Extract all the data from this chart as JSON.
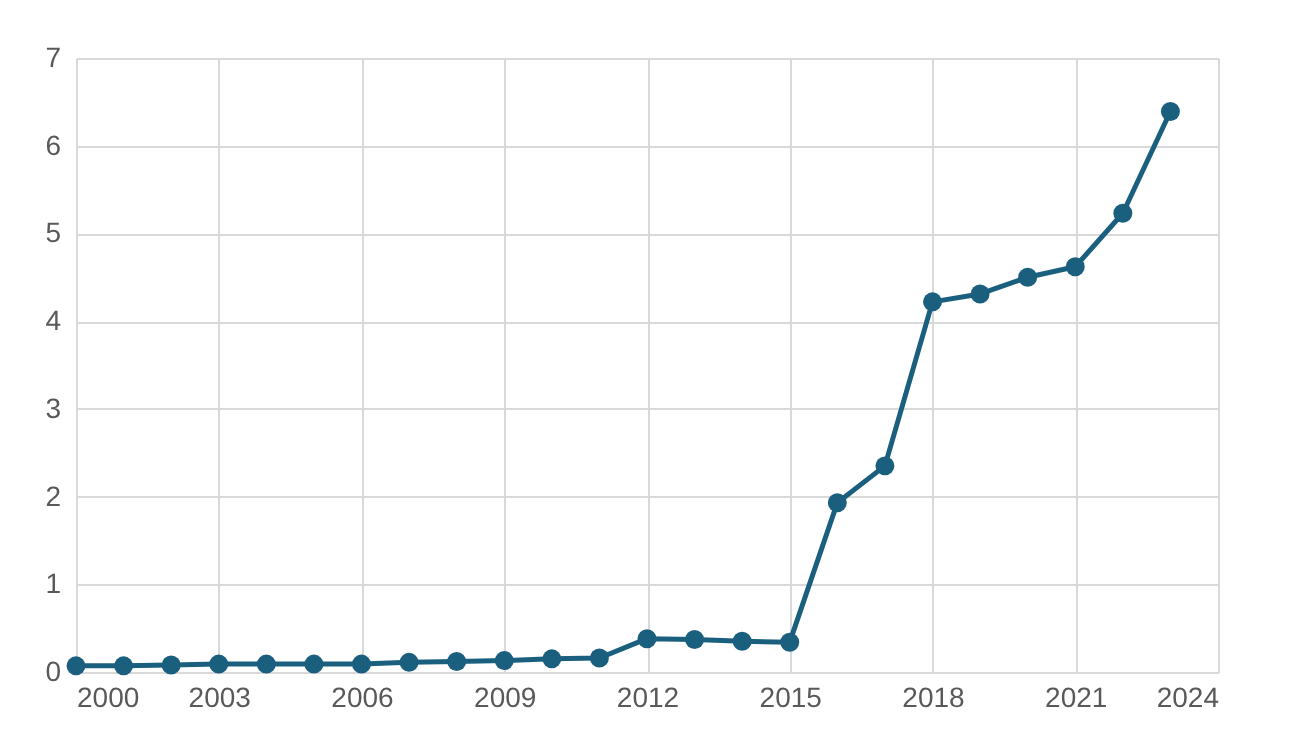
{
  "chart_data": {
    "type": "line",
    "x": [
      2000,
      2001,
      2002,
      2003,
      2004,
      2005,
      2006,
      2007,
      2008,
      2009,
      2010,
      2011,
      2012,
      2013,
      2014,
      2015,
      2016,
      2017,
      2018,
      2019,
      2020,
      2021,
      2022,
      2023
    ],
    "series": [
      {
        "color": "#1b5f7e",
        "values": [
          0.07,
          0.07,
          0.08,
          0.09,
          0.09,
          0.09,
          0.09,
          0.11,
          0.12,
          0.13,
          0.15,
          0.16,
          0.38,
          0.37,
          0.35,
          0.34,
          1.93,
          2.35,
          4.22,
          4.31,
          4.5,
          4.62,
          5.23,
          6.39
        ]
      }
    ],
    "xlim": [
      2000,
      2024
    ],
    "xticks": [
      2000,
      2003,
      2006,
      2009,
      2012,
      2015,
      2018,
      2021,
      2024
    ],
    "ylim": [
      0,
      7
    ],
    "yticks": [
      0,
      1,
      2,
      3,
      4,
      5,
      6,
      7
    ],
    "grid": true,
    "marker": "circle",
    "line_style": "solid"
  }
}
